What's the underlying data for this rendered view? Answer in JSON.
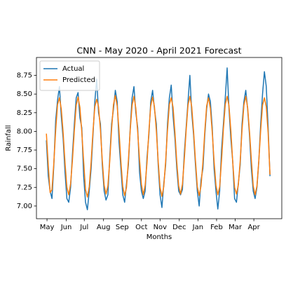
{
  "chart_data": {
    "type": "line",
    "title": "CNN - May 2020 - April 2021 Forecast",
    "x_label": "Months",
    "y_label": "Rainfall",
    "x": [
      0,
      3,
      6,
      9,
      12,
      15,
      18,
      21,
      24,
      27,
      30,
      33,
      36,
      39,
      42,
      45,
      48,
      51,
      54,
      57,
      60,
      63,
      66,
      69,
      72,
      75,
      78,
      81,
      84,
      87,
      90,
      93,
      96,
      99,
      102,
      105,
      108,
      111,
      114,
      117,
      120,
      123,
      126,
      129,
      132,
      135,
      138,
      141,
      144,
      147,
      150,
      153,
      156,
      159,
      162,
      165,
      168,
      171,
      174,
      177,
      180,
      183,
      186,
      189,
      192,
      195,
      198,
      201,
      204,
      207,
      210,
      213,
      216,
      219,
      222,
      225,
      228,
      231,
      234,
      237,
      240,
      243,
      246,
      249,
      252,
      255,
      258,
      261,
      264,
      267,
      270,
      273,
      276,
      279,
      282,
      285,
      288,
      291,
      294,
      297,
      300,
      303,
      306,
      309,
      312,
      315,
      318,
      321,
      324,
      327,
      330,
      333,
      336,
      339,
      342,
      345,
      348,
      351,
      354,
      357,
      360
    ],
    "series": [
      {
        "name": "Actual",
        "color": "#1f77b4",
        "values": [
          7.88,
          7.4,
          7.2,
          7.1,
          7.55,
          8.15,
          8.42,
          8.6,
          8.2,
          7.9,
          7.45,
          7.1,
          7.05,
          7.25,
          7.7,
          8.1,
          8.45,
          8.52,
          8.18,
          8.05,
          7.4,
          7.05,
          6.95,
          7.2,
          7.5,
          7.95,
          8.4,
          8.7,
          8.25,
          8.1,
          7.55,
          7.2,
          7.08,
          7.15,
          7.65,
          8.1,
          8.3,
          8.55,
          8.4,
          7.85,
          7.5,
          7.15,
          7.05,
          7.3,
          7.55,
          8.05,
          8.45,
          8.6,
          8.25,
          8.05,
          7.45,
          7.2,
          7.1,
          7.2,
          7.65,
          7.95,
          8.4,
          8.55,
          8.3,
          8.1,
          7.55,
          7.15,
          6.98,
          7.3,
          7.55,
          8.1,
          8.45,
          8.62,
          8.2,
          7.9,
          7.5,
          7.2,
          7.15,
          7.22,
          7.7,
          8.05,
          8.4,
          8.75,
          8.25,
          7.95,
          7.55,
          7.2,
          7.0,
          7.35,
          7.5,
          7.95,
          8.3,
          8.5,
          8.4,
          8.05,
          7.5,
          7.2,
          6.96,
          7.2,
          7.75,
          8.1,
          8.45,
          8.85,
          8.3,
          7.9,
          7.6,
          7.1,
          7.05,
          7.3,
          7.55,
          8.1,
          8.4,
          8.55,
          8.3,
          7.95,
          7.5,
          7.2,
          7.1,
          7.25,
          7.6,
          8.1,
          8.5,
          8.8,
          8.6,
          8.05,
          7.4
        ]
      },
      {
        "name": "Predicted",
        "color": "#ff7f0e",
        "values": [
          7.97,
          7.55,
          7.18,
          7.22,
          7.58,
          8.02,
          8.36,
          8.45,
          8.3,
          7.98,
          7.58,
          7.25,
          7.15,
          7.3,
          7.62,
          8.01,
          8.35,
          8.46,
          8.32,
          7.99,
          7.6,
          7.22,
          7.12,
          7.26,
          7.59,
          8.0,
          8.33,
          8.43,
          8.33,
          8.02,
          7.61,
          7.28,
          7.16,
          7.27,
          7.6,
          8.03,
          8.36,
          8.48,
          8.34,
          8.0,
          7.59,
          7.26,
          7.14,
          7.25,
          7.61,
          8.02,
          8.35,
          8.47,
          8.31,
          7.99,
          7.62,
          7.29,
          7.15,
          7.28,
          7.58,
          8.0,
          8.34,
          8.46,
          8.33,
          8.01,
          7.6,
          7.25,
          7.13,
          7.26,
          7.6,
          8.02,
          8.36,
          8.45,
          8.32,
          7.98,
          7.58,
          7.27,
          7.16,
          7.29,
          7.62,
          8.01,
          8.35,
          8.47,
          8.33,
          8.0,
          7.61,
          7.26,
          7.14,
          7.27,
          7.59,
          8.0,
          8.34,
          8.45,
          8.31,
          7.99,
          7.6,
          7.28,
          7.15,
          7.26,
          7.61,
          8.03,
          8.36,
          8.47,
          8.34,
          8.01,
          7.59,
          7.25,
          7.16,
          7.28,
          7.6,
          8.02,
          8.35,
          8.47,
          8.32,
          8.0,
          7.62,
          7.27,
          7.15,
          7.27,
          7.61,
          8.01,
          8.35,
          8.45,
          8.33,
          7.98,
          7.42
        ]
      }
    ],
    "xlim": [
      -16,
      379
    ],
    "xticks": [
      {
        "value": 1,
        "label": "May"
      },
      {
        "value": 32,
        "label": "Jun"
      },
      {
        "value": 61,
        "label": "Jul"
      },
      {
        "value": 92,
        "label": "Aug"
      },
      {
        "value": 122,
        "label": "Sep"
      },
      {
        "value": 153,
        "label": "Oct"
      },
      {
        "value": 183,
        "label": "Nov"
      },
      {
        "value": 214,
        "label": "Dec"
      },
      {
        "value": 244,
        "label": "Jan"
      },
      {
        "value": 274,
        "label": "Feb"
      },
      {
        "value": 304,
        "label": "Mar"
      },
      {
        "value": 334,
        "label": "Apr"
      }
    ],
    "ylim": [
      6.83,
      8.99
    ],
    "yticks": [
      {
        "value": 7.0,
        "label": "7.00"
      },
      {
        "value": 7.25,
        "label": "7.25"
      },
      {
        "value": 7.5,
        "label": "7.50"
      },
      {
        "value": 7.75,
        "label": "7.75"
      },
      {
        "value": 8.0,
        "label": "8.00"
      },
      {
        "value": 8.25,
        "label": "8.25"
      },
      {
        "value": 8.5,
        "label": "8.50"
      },
      {
        "value": 8.75,
        "label": "8.75"
      }
    ],
    "grid": false,
    "legend": "upper left"
  }
}
